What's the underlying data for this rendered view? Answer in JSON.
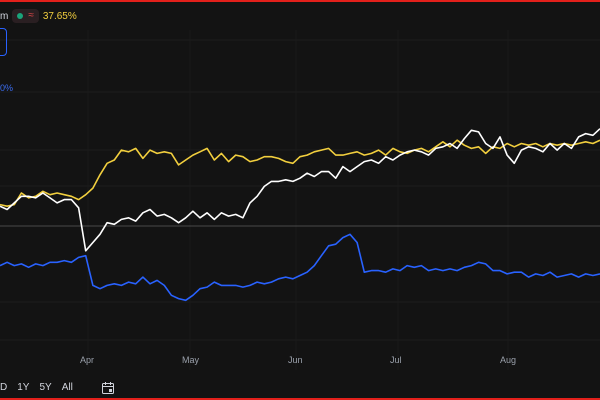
{
  "legend": {
    "name_partial": "m",
    "approx_symbol": "≈",
    "change": "37.65%"
  },
  "blue_series_label_partial": "0%",
  "x_axis": {
    "months": [
      "Apr",
      "May",
      "Jun",
      "Jul",
      "Aug"
    ]
  },
  "range_buttons": [
    "D",
    "1Y",
    "5Y",
    "All"
  ],
  "colors": {
    "background": "#131313",
    "frame": "#e3201b",
    "white_series": "#ffffff",
    "yellow_series": "#f2cf3e",
    "blue_series": "#2962ff"
  },
  "icons": [
    "calendar-icon",
    "status-dot-icon"
  ],
  "chart_data": {
    "type": "line",
    "x_label": "",
    "y_label": "",
    "zero_line": true,
    "series": [
      {
        "color": "#ffffff",
        "values": [
          0.12,
          0.1,
          0.14,
          0.18,
          0.18,
          0.17,
          0.2,
          0.17,
          0.14,
          0.16,
          0.16,
          0.11,
          -0.15,
          -0.1,
          -0.05,
          0.02,
          0.01,
          0.04,
          0.05,
          0.03,
          0.08,
          0.1,
          0.06,
          0.07,
          0.05,
          0.02,
          0.05,
          0.09,
          0.05,
          0.08,
          0.04,
          0.08,
          0.06,
          0.07,
          0.05,
          0.14,
          0.18,
          0.24,
          0.27,
          0.27,
          0.28,
          0.27,
          0.29,
          0.32,
          0.3,
          0.33,
          0.33,
          0.29,
          0.36,
          0.33,
          0.36,
          0.39,
          0.4,
          0.38,
          0.42,
          0.4,
          0.43,
          0.45,
          0.46,
          0.45,
          0.43,
          0.47,
          0.48,
          0.5,
          0.47,
          0.53,
          0.58,
          0.57,
          0.5,
          0.47,
          0.54,
          0.43,
          0.38,
          0.46,
          0.48,
          0.47,
          0.45,
          0.5,
          0.46,
          0.5,
          0.47,
          0.54,
          0.56,
          0.55,
          0.59
        ]
      },
      {
        "color": "#f2cf3e",
        "values": [
          0.13,
          0.12,
          0.13,
          0.2,
          0.17,
          0.18,
          0.21,
          0.19,
          0.2,
          0.19,
          0.18,
          0.16,
          0.19,
          0.23,
          0.31,
          0.38,
          0.4,
          0.46,
          0.45,
          0.47,
          0.41,
          0.46,
          0.44,
          0.45,
          0.44,
          0.37,
          0.4,
          0.43,
          0.45,
          0.47,
          0.4,
          0.44,
          0.39,
          0.43,
          0.42,
          0.39,
          0.4,
          0.42,
          0.42,
          0.41,
          0.39,
          0.38,
          0.42,
          0.43,
          0.45,
          0.46,
          0.47,
          0.43,
          0.43,
          0.44,
          0.45,
          0.43,
          0.44,
          0.46,
          0.43,
          0.47,
          0.45,
          0.44,
          0.46,
          0.47,
          0.45,
          0.48,
          0.51,
          0.48,
          0.52,
          0.49,
          0.47,
          0.48,
          0.44,
          0.48,
          0.47,
          0.5,
          0.48,
          0.5,
          0.49,
          0.5,
          0.48,
          0.5,
          0.49,
          0.5,
          0.49,
          0.5,
          0.51,
          0.5,
          0.52
        ]
      },
      {
        "color": "#2962ff",
        "values": [
          -0.24,
          -0.22,
          -0.24,
          -0.23,
          -0.25,
          -0.23,
          -0.24,
          -0.22,
          -0.22,
          -0.21,
          -0.22,
          -0.19,
          -0.18,
          -0.36,
          -0.38,
          -0.36,
          -0.35,
          -0.36,
          -0.34,
          -0.35,
          -0.31,
          -0.35,
          -0.33,
          -0.36,
          -0.42,
          -0.44,
          -0.45,
          -0.42,
          -0.38,
          -0.37,
          -0.34,
          -0.36,
          -0.36,
          -0.36,
          -0.37,
          -0.36,
          -0.34,
          -0.35,
          -0.34,
          -0.32,
          -0.31,
          -0.32,
          -0.3,
          -0.28,
          -0.24,
          -0.18,
          -0.12,
          -0.11,
          -0.07,
          -0.05,
          -0.1,
          -0.28,
          -0.27,
          -0.27,
          -0.28,
          -0.26,
          -0.27,
          -0.24,
          -0.25,
          -0.24,
          -0.27,
          -0.26,
          -0.27,
          -0.26,
          -0.27,
          -0.25,
          -0.24,
          -0.22,
          -0.23,
          -0.27,
          -0.27,
          -0.29,
          -0.28,
          -0.28,
          -0.31,
          -0.29,
          -0.3,
          -0.28,
          -0.31,
          -0.3,
          -0.29,
          -0.31,
          -0.29,
          -0.3,
          -0.29
        ]
      }
    ]
  }
}
